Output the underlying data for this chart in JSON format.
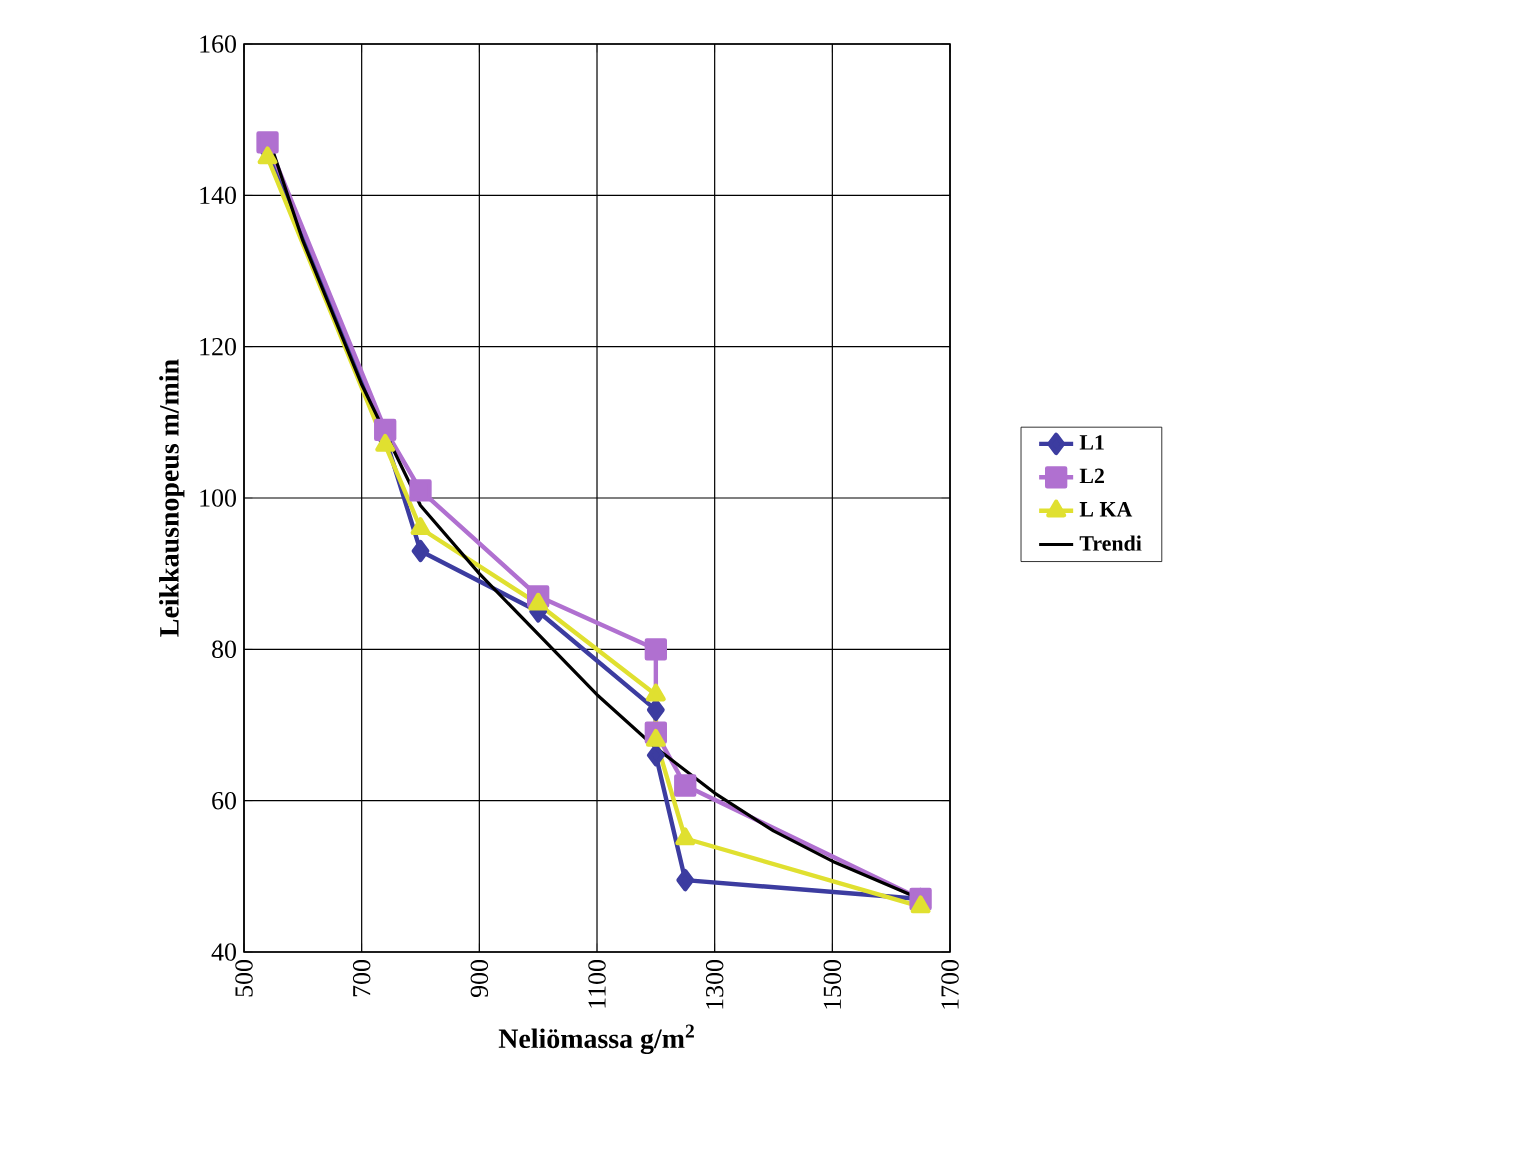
{
  "chart_data": {
    "type": "line",
    "xlabel": "Neliömassa g/m$^{2}$",
    "ylabel": "Leikkausnopeus m/min",
    "xlim": [
      500,
      1700
    ],
    "ylim": [
      40,
      160
    ],
    "xticks": [
      500,
      700,
      900,
      1100,
      1300,
      1500,
      1700
    ],
    "yticks": [
      40,
      60,
      80,
      100,
      120,
      140,
      160
    ],
    "grid": true,
    "legend": "right",
    "series": [
      {
        "name": "L1",
        "color": "#3c3ca0",
        "marker": "diamond",
        "x": [
          540,
          740,
          800,
          1000,
          1200,
          1200,
          1250,
          1650
        ],
        "values": [
          146,
          108,
          93,
          85,
          72,
          66,
          49.5,
          47
        ]
      },
      {
        "name": "L2",
        "color": "#b070d0",
        "marker": "square",
        "x": [
          540,
          740,
          800,
          1000,
          1200,
          1200,
          1250,
          1650
        ],
        "values": [
          147,
          109,
          101,
          87,
          80,
          69,
          62,
          47
        ]
      },
      {
        "name": "L KA",
        "color": "#e0e030",
        "marker": "triangle",
        "x": [
          540,
          740,
          800,
          1000,
          1200,
          1200,
          1250,
          1650
        ],
        "values": [
          145,
          107,
          96,
          86,
          74,
          68,
          55,
          46
        ]
      },
      {
        "name": "Trendi",
        "color": "#000000",
        "marker": "none",
        "x": [
          540,
          600,
          700,
          800,
          900,
          1000,
          1100,
          1200,
          1300,
          1400,
          1500,
          1650
        ],
        "values": [
          148,
          134,
          115,
          99,
          90,
          82,
          74,
          67,
          61,
          56,
          52,
          47
        ]
      }
    ]
  }
}
